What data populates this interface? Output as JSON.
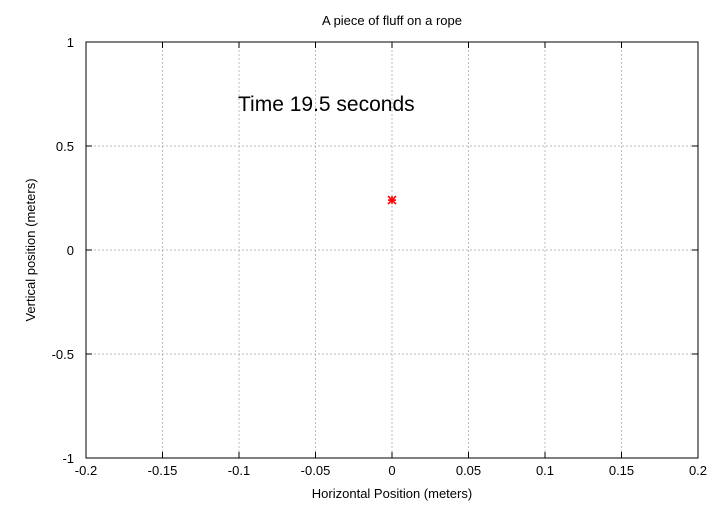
{
  "chart_data": {
    "type": "scatter",
    "title": "A piece of fluff on a rope",
    "xlabel": "Horizontal Position (meters)",
    "ylabel": "Vertical position (meters)",
    "xlim": [
      -0.2,
      0.2
    ],
    "ylim": [
      -1,
      1
    ],
    "xticks": [
      -0.2,
      -0.15,
      -0.1,
      -0.05,
      0,
      0.05,
      0.1,
      0.15,
      0.2
    ],
    "xtick_labels": [
      "-0.2",
      "-0.15",
      "-0.1",
      "-0.05",
      "0",
      "0.05",
      "0.1",
      "0.15",
      "0.2"
    ],
    "yticks": [
      -1,
      -0.5,
      0,
      0.5,
      1
    ],
    "ytick_labels": [
      "-1",
      "-0.5",
      "0",
      "0.5",
      "1"
    ],
    "grid": true,
    "annotation": "Time 19.5 seconds",
    "points": [
      {
        "x": 0.0,
        "y": 0.24
      }
    ],
    "point_color": "#ff0000",
    "marker": "asterisk"
  }
}
